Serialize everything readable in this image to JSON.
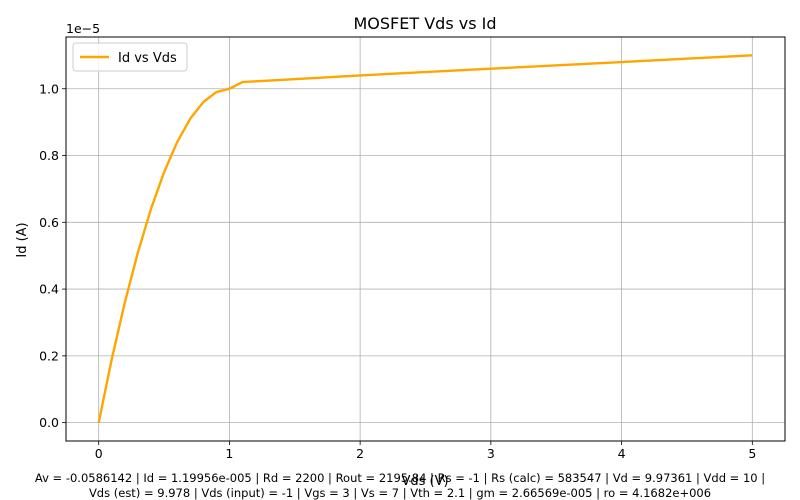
{
  "chart_data": {
    "type": "line",
    "title": "MOSFET Vds vs Id",
    "xlabel": "Vds (V)",
    "ylabel": "Id (A)",
    "y_offset_label": "1e−5",
    "y_scale_factor": 1e-05,
    "xlim": [
      -0.25,
      5.25
    ],
    "ylim": [
      -5.5e-07,
      1.155e-05
    ],
    "x_ticks": [
      0,
      1,
      2,
      3,
      4,
      5
    ],
    "y_ticks": [
      0.0,
      0.2,
      0.4,
      0.6,
      0.8,
      1.0
    ],
    "x_tick_labels": [
      "0",
      "1",
      "2",
      "3",
      "4",
      "5"
    ],
    "y_tick_labels": [
      "0.0",
      "0.2",
      "0.4",
      "0.6",
      "0.8",
      "1.0"
    ],
    "grid": true,
    "legend_position": "upper-left",
    "series": [
      {
        "name": "Id vs Vds",
        "color": "#FFA500",
        "x": [
          0,
          0.1,
          0.2,
          0.3,
          0.4,
          0.5,
          0.6,
          0.7,
          0.8,
          0.9,
          1.0,
          1.1,
          2,
          3,
          4,
          5
        ],
        "y": [
          0,
          1.9e-06,
          3.6e-06,
          5.1e-06,
          6.4e-06,
          7.5e-06,
          8.4e-06,
          9.1e-06,
          9.6e-06,
          9.9e-06,
          1e-05,
          1.02e-05,
          1.04e-05,
          1.06e-05,
          1.08e-05,
          1.1e-05
        ]
      }
    ]
  },
  "footer": {
    "line1": "Av = -0.0586142 | Id = 1.19956e-005 | Rd = 2200 | Rout = 2195.84 | Rs = -1 | Rs (calc) = 583547 | Vd = 9.97361 | Vdd = 10 |",
    "line2": "Vds (est) = 9.978 | Vds (input) = -1 | Vgs = 3 | Vs = 7 | Vth = 2.1 | gm = 2.66569e-005 | ro = 4.1682e+006"
  }
}
